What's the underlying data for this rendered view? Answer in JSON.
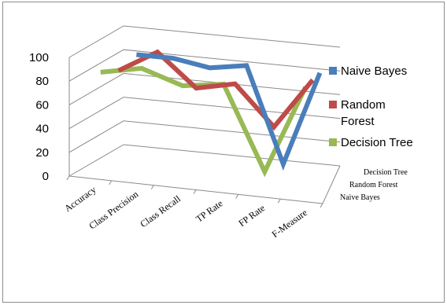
{
  "chart_data": {
    "type": "line",
    "title": "",
    "categories": [
      "Accuracy",
      "Class Precision",
      "Class Recall",
      "TP Rate",
      "FP Rate",
      "F-Measure"
    ],
    "y_ticks": [
      "0",
      "20",
      "40",
      "60",
      "80",
      "100"
    ],
    "ylim": [
      0,
      100
    ],
    "depth_labels": [
      "Decision Tree",
      "Random Forest",
      "Naive Bayes"
    ],
    "legend_position": "right",
    "series": [
      {
        "name": "Naive Bayes",
        "color": "#4a7ebb",
        "values": [
          80,
          80,
          75,
          80,
          0,
          80
        ]
      },
      {
        "name": "Random Forest",
        "color": "#be4b48",
        "values": [
          76,
          95,
          68,
          75,
          42,
          85
        ]
      },
      {
        "name": "Decision Tree",
        "color": "#98b954",
        "values": [
          84,
          91,
          80,
          85,
          15,
          90
        ]
      }
    ],
    "legend": [
      {
        "label_lines": [
          "Naive Bayes"
        ],
        "color": "#4a7ebb"
      },
      {
        "label_lines": [
          "Random",
          "Forest"
        ],
        "color": "#be4b48"
      },
      {
        "label_lines": [
          "Decision Tree"
        ],
        "color": "#98b954"
      }
    ]
  }
}
